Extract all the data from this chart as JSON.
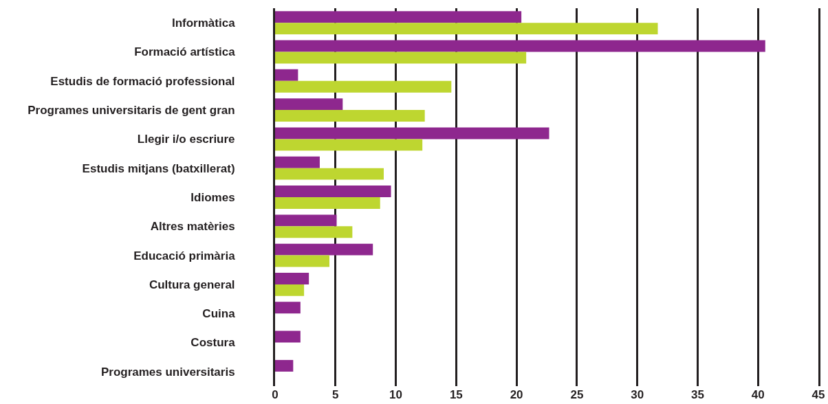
{
  "chart_data": {
    "type": "bar",
    "orientation": "horizontal",
    "categories": [
      "Informàtica",
      "Formació artística",
      "Estudis de formació professional",
      "Programes universitaris de gent gran",
      "Llegir i/o escriure",
      "Estudis mitjans (batxillerat)",
      "Idiomes",
      "Altres matèries",
      "Educació primària",
      "Cultura general",
      "Cuina",
      "Costura",
      "Programes universitaris"
    ],
    "series": [
      {
        "color": "#8e278e",
        "values": [
          20.4,
          40.6,
          1.9,
          5.6,
          22.7,
          3.7,
          9.6,
          5.1,
          8.1,
          2.8,
          2.1,
          2.1,
          1.5
        ]
      },
      {
        "color": "#bed630",
        "values": [
          31.7,
          20.8,
          14.6,
          12.4,
          12.2,
          9.0,
          8.7,
          6.4,
          4.5,
          2.4,
          null,
          null,
          null
        ]
      }
    ],
    "xlim": [
      0,
      45
    ],
    "xticks": [
      0,
      5,
      10,
      15,
      20,
      25,
      30,
      35,
      40,
      45
    ],
    "grid": "x"
  }
}
